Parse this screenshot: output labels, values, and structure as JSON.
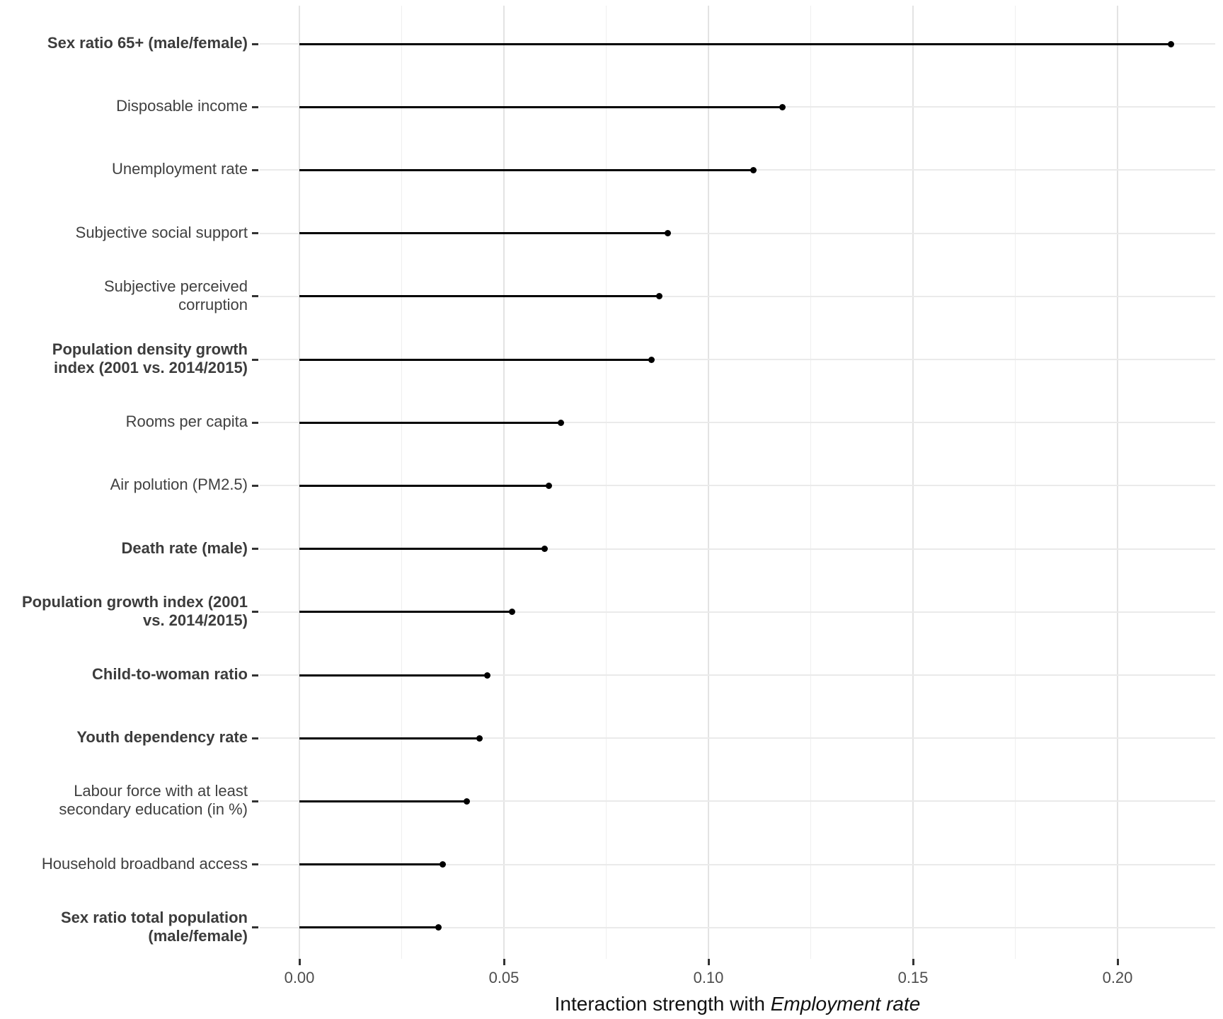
{
  "chart_data": {
    "type": "bar",
    "variant": "horizontal-lollipop",
    "title": "",
    "xlabel": "Interaction strength with Employment rate",
    "xlabel_prefix": "Interaction strength with ",
    "xlabel_italic": "Employment rate",
    "ylabel": "",
    "xlim": [
      0,
      0.2225
    ],
    "x_ticks": [
      0,
      0.05,
      0.1,
      0.15,
      0.2
    ],
    "x_tick_labels": [
      "0.00",
      "0.05",
      "0.10",
      "0.15",
      "0.20"
    ],
    "x_minor_ticks": [
      0.025,
      0.075,
      0.125,
      0.175
    ],
    "grid": "major-and-minor-vertical, major-horizontal",
    "legend": "none",
    "categories": [
      "Sex ratio 65+ (male/female)",
      "Disposable income",
      "Unemployment rate",
      "Subjective social support",
      "Subjective perceived corruption",
      "Population density growth index (2001 vs. 2014/2015)",
      "Rooms per capita",
      "Air polution (PM2.5)",
      "Death rate (male)",
      "Population growth index (2001 vs. 2014/2015)",
      "Child-to-woman ratio",
      "Youth dependency rate",
      "Labour force with at least secondary education (in %)",
      "Household broadband access",
      "Sex ratio total population (male/female)"
    ],
    "category_lines": [
      [
        "Sex ratio 65+ (male/female)"
      ],
      [
        "Disposable income"
      ],
      [
        "Unemployment rate"
      ],
      [
        "Subjective social support"
      ],
      [
        "Subjective perceived",
        "corruption"
      ],
      [
        "Population density growth",
        "index (2001 vs. 2014/2015)"
      ],
      [
        "Rooms per capita"
      ],
      [
        "Air polution (PM2.5)"
      ],
      [
        "Death rate (male)"
      ],
      [
        "Population growth index (2001",
        "vs. 2014/2015)"
      ],
      [
        "Child-to-woman ratio"
      ],
      [
        "Youth dependency rate"
      ],
      [
        "Labour force with at least",
        "secondary education (in %)"
      ],
      [
        "Household broadband access"
      ],
      [
        "Sex ratio total population",
        "(male/female)"
      ]
    ],
    "category_bold": [
      true,
      false,
      false,
      false,
      false,
      true,
      false,
      false,
      true,
      true,
      true,
      true,
      false,
      false,
      true
    ],
    "values": [
      0.213,
      0.118,
      0.111,
      0.09,
      0.088,
      0.086,
      0.064,
      0.061,
      0.06,
      0.052,
      0.046,
      0.044,
      0.041,
      0.035,
      0.034
    ],
    "colors": {
      "point": "#000000",
      "segment": "#000000",
      "grid_major": "#e3e3e3",
      "grid_minor": "#efefef",
      "row_grid": "#eaeaea",
      "axis_tick": "#333333",
      "label_text": "#404040",
      "tick_label_text": "#4d4d4d",
      "axis_title_text": "#111111",
      "background": "#ffffff"
    }
  }
}
